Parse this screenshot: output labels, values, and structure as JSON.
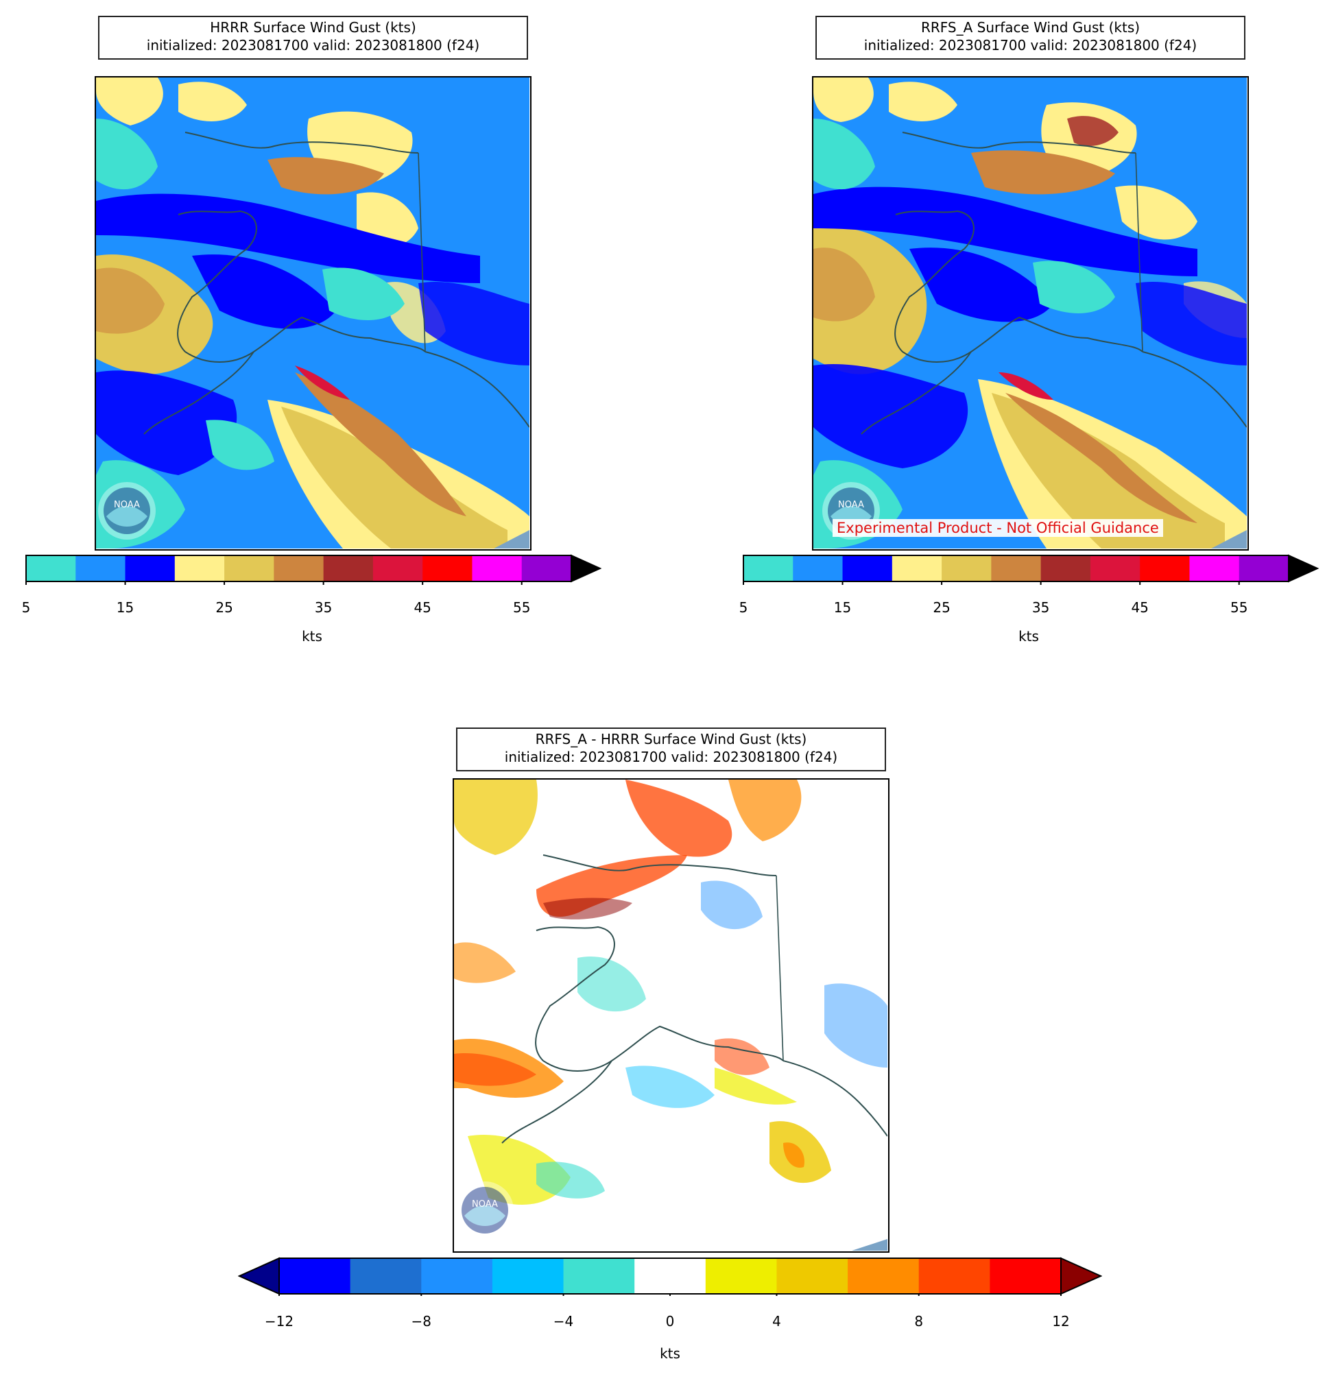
{
  "panels": [
    {
      "id": "hrrr",
      "title_line1": "HRRR Surface Wind Gust (kts)",
      "title_line2": "initialized: 2023081700 valid: 2023081800 (f24)",
      "logo_text": "NOAA"
    },
    {
      "id": "rrfs",
      "title_line1": "RRFS_A Surface Wind Gust (kts)",
      "title_line2": "initialized: 2023081700 valid: 2023081800 (f24)",
      "logo_text": "NOAA",
      "disclaimer": "Experimental Product - Not Official Guidance"
    },
    {
      "id": "diff",
      "title_line1": "RRFS_A - HRRR Surface Wind Gust (kts)",
      "title_line2": "initialized: 2023081700 valid: 2023081800 (f24)",
      "logo_text": "NOAA"
    }
  ],
  "colorbars": {
    "gust": {
      "unit": "kts",
      "ticks": [
        "5",
        "15",
        "25",
        "35",
        "45",
        "55"
      ],
      "bounds": [
        5,
        10,
        15,
        20,
        25,
        30,
        35,
        40,
        45,
        50,
        55,
        60
      ],
      "colors": [
        "#40e0d0",
        "#1e90ff",
        "#0000ff",
        "#fff08c",
        "#e2c855",
        "#cd853f",
        "#a52a2a",
        "#dc143c",
        "#ff0000",
        "#ff00ff",
        "#9400d3"
      ],
      "extend_max_color": "#000000"
    },
    "diff": {
      "unit": "kts",
      "ticks": [
        "−12",
        "−8",
        "−4",
        "0",
        "4",
        "8",
        "12"
      ],
      "bounds": [
        -12,
        -10,
        -8,
        -6,
        -4,
        -2,
        2,
        4,
        6,
        8,
        10,
        12
      ],
      "colors": [
        "#0000ff",
        "#1e6fd0",
        "#1e90ff",
        "#00bfff",
        "#40e0d0",
        "#ffffff",
        "#eeee00",
        "#eec900",
        "#ff8c00",
        "#ff4500",
        "#ff0000"
      ],
      "extend_min_color": "#00008b",
      "extend_max_color": "#8b0000"
    }
  }
}
